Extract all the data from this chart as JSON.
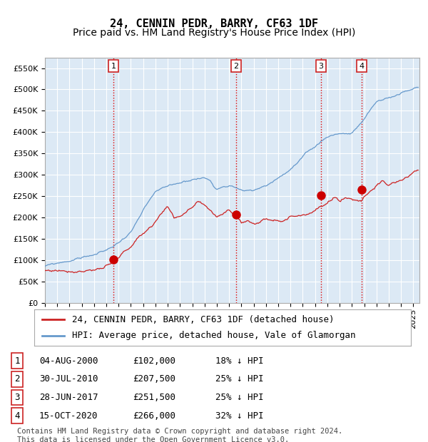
{
  "title": "24, CENNIN PEDR, BARRY, CF63 1DF",
  "subtitle": "Price paid vs. HM Land Registry's House Price Index (HPI)",
  "ylim": [
    0,
    575000
  ],
  "yticks": [
    0,
    50000,
    100000,
    150000,
    200000,
    250000,
    300000,
    350000,
    400000,
    450000,
    500000,
    550000
  ],
  "xlim_start": 1995.0,
  "xlim_end": 2025.5,
  "plot_bg_color": "#dce9f5",
  "grid_color": "#ffffff",
  "hpi_line_color": "#6699cc",
  "price_line_color": "#cc2222",
  "sale_marker_color": "#cc0000",
  "sale_marker_size": 8,
  "vline_color": "#dd0000",
  "sales": [
    {
      "num": 1,
      "date_label": "04-AUG-2000",
      "price": 102000,
      "pct": "18%",
      "x": 2000.58
    },
    {
      "num": 2,
      "date_label": "30-JUL-2010",
      "price": 207500,
      "pct": "25%",
      "x": 2010.58
    },
    {
      "num": 3,
      "date_label": "28-JUN-2017",
      "price": 251500,
      "pct": "25%",
      "x": 2017.49
    },
    {
      "num": 4,
      "date_label": "15-OCT-2020",
      "price": 266000,
      "pct": "32%",
      "x": 2020.79
    }
  ],
  "legend_line1": "24, CENNIN PEDR, BARRY, CF63 1DF (detached house)",
  "legend_line2": "HPI: Average price, detached house, Vale of Glamorgan",
  "title_fontsize": 11,
  "subtitle_fontsize": 10,
  "tick_fontsize": 8,
  "legend_fontsize": 9,
  "table_fontsize": 9,
  "footer_fontsize": 7.5,
  "footer_text": "Contains HM Land Registry data © Crown copyright and database right 2024.\nThis data is licensed under the Open Government Licence v3.0.",
  "hpi_keypoints": {
    "1995.0": 85000,
    "1996.0": 90000,
    "1997.0": 97000,
    "1998.0": 105000,
    "1999.0": 112000,
    "2000.0": 120000,
    "2001.0": 138000,
    "2002.0": 165000,
    "2003.0": 210000,
    "2004.0": 250000,
    "2005.0": 258000,
    "2006.0": 268000,
    "2007.0": 278000,
    "2008.0": 282000,
    "2008.5": 275000,
    "2009.0": 258000,
    "2009.5": 268000,
    "2010.0": 272000,
    "2011.0": 262000,
    "2012.0": 258000,
    "2013.0": 268000,
    "2014.0": 288000,
    "2015.0": 308000,
    "2016.0": 332000,
    "2017.0": 352000,
    "2018.0": 378000,
    "2019.0": 388000,
    "2020.0": 388000,
    "2021.0": 418000,
    "2022.0": 458000,
    "2023.0": 468000,
    "2024.0": 478000,
    "2025.3": 488000
  },
  "price_keypoints": {
    "1995.0": 75000,
    "1996.0": 77000,
    "1997.0": 80000,
    "1998.0": 86000,
    "1999.0": 93000,
    "2000.0": 98000,
    "2000.58": 102000,
    "2001.0": 112000,
    "2002.0": 138000,
    "2003.0": 168000,
    "2004.0": 198000,
    "2005.0": 238000,
    "2005.5": 205000,
    "2006.0": 215000,
    "2007.0": 228000,
    "2007.5": 238000,
    "2008.0": 222000,
    "2008.5": 212000,
    "2009.0": 198000,
    "2009.5": 208000,
    "2010.0": 222000,
    "2010.58": 207500,
    "2011.0": 193000,
    "2011.5": 198000,
    "2012.0": 193000,
    "2012.5": 198000,
    "2013.0": 203000,
    "2014.0": 208000,
    "2015.0": 218000,
    "2016.0": 228000,
    "2017.0": 243000,
    "2017.49": 251500,
    "2018.0": 253000,
    "2018.5": 268000,
    "2019.0": 263000,
    "2019.5": 273000,
    "2020.0": 268000,
    "2020.79": 266000,
    "2021.0": 278000,
    "2021.5": 293000,
    "2022.0": 308000,
    "2022.5": 313000,
    "2023.0": 303000,
    "2023.5": 308000,
    "2024.0": 313000,
    "2025.0": 328000,
    "2025.3": 333000
  }
}
